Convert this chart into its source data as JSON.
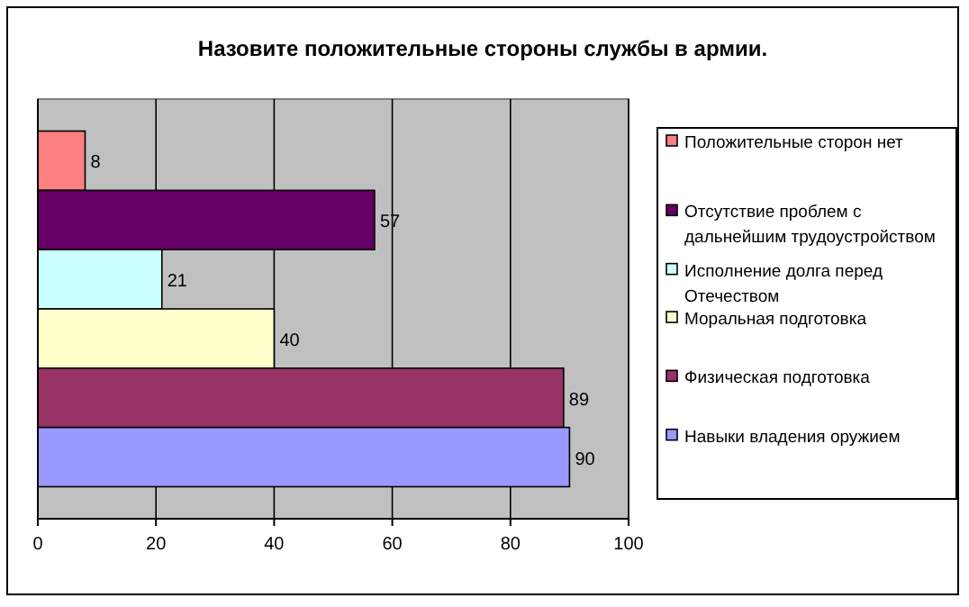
{
  "chart_data": {
    "type": "bar",
    "orientation": "horizontal",
    "title": "Назовите положительные стороны службы в армии.",
    "categories": [
      null
    ],
    "series": [
      {
        "name": "Положительные сторон нет",
        "color": "#ff8080",
        "values": [
          8
        ]
      },
      {
        "name": "Отсутствие проблем с дальнейшим трудоустройством",
        "color": "#660066",
        "values": [
          57
        ]
      },
      {
        "name": "Исполнение долга перед Отечеством",
        "color": "#ccffff",
        "values": [
          21
        ]
      },
      {
        "name": "Моральная подготовка",
        "color": "#ffffcc",
        "values": [
          40
        ]
      },
      {
        "name": "Физическая подготовка",
        "color": "#993366",
        "values": [
          89
        ]
      },
      {
        "name": "Навыки владения оружием",
        "color": "#9999ff",
        "values": [
          90
        ]
      }
    ],
    "xlim": [
      0,
      100
    ],
    "xticks": [
      0,
      20,
      40,
      60,
      80,
      100
    ],
    "grid": "x",
    "legend": "right",
    "data_labels": true,
    "tick_labels": "x"
  }
}
